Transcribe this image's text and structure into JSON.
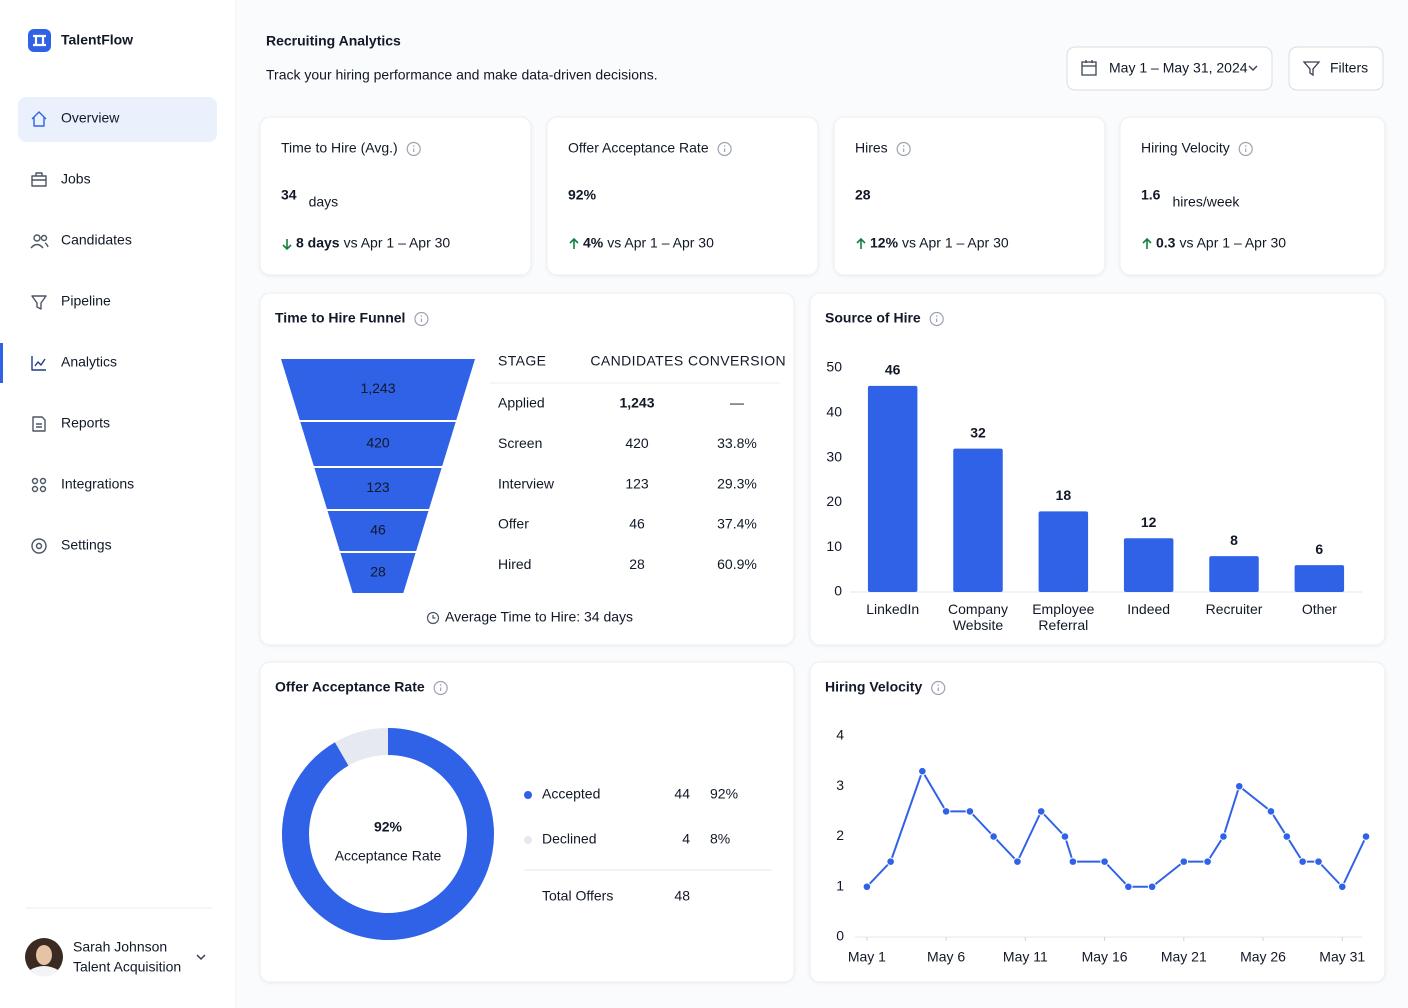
{
  "sidebar": {
    "brand": "TalentFlow",
    "nav": [
      "Overview",
      "Jobs",
      "Candidates",
      "Pipeline",
      "Analytics",
      "Reports",
      "Integrations",
      "Settings"
    ],
    "user": {
      "name": "Sarah Johnson",
      "role": "Talent Acquisition"
    }
  },
  "header": {
    "title": "Recruiting Analytics",
    "subtitle": "Track your hiring performance and make data-driven decisions.",
    "date_range": "May 1 – May 31, 2024",
    "filters": "Filters"
  },
  "kpis": [
    {
      "label": "Time to Hire (Avg.)",
      "value": "34",
      "unit": "days",
      "delta": "8 days",
      "comparison": "vs Apr 1 – Apr 30",
      "trend": "down"
    },
    {
      "label": "Offer Acceptance Rate",
      "value": "92%",
      "delta": "4%",
      "comparison": "vs Apr 1 – Apr 30",
      "trend": "up"
    },
    {
      "label": "Hires",
      "value": "28",
      "delta": "12%",
      "comparison": "vs Apr 1 – Apr 30",
      "trend": "up"
    },
    {
      "label": "Hiring Velocity",
      "value": "1.6",
      "unit": "hires/week",
      "delta": "0.3",
      "comparison": "vs Apr 1 – Apr 30",
      "trend": "up"
    }
  ],
  "chart_data": [
    {
      "type": "funnel",
      "title": "Time to Hire Funnel",
      "categories": [
        "Applied",
        "Screen",
        "Interview",
        "Offer",
        "Hired"
      ],
      "values": [
        1243,
        420,
        123,
        46,
        28
      ],
      "value_labels": [
        "1,243",
        "420",
        "123",
        "46",
        "28"
      ],
      "columns": [
        "STAGE",
        "CANDIDATES",
        "CONVERSION"
      ],
      "conversion_labels": [
        "—",
        "33.8%",
        "29.3%",
        "37.4%",
        "60.9%"
      ],
      "footnote": "Average Time to Hire: 34 days",
      "color": "#2f62e6"
    },
    {
      "type": "bar",
      "title": "Source of Hire",
      "categories": [
        "LinkedIn",
        "Company Website",
        "Employee Referral",
        "Indeed",
        "Recruiter",
        "Other"
      ],
      "values": [
        46,
        32,
        18,
        12,
        8,
        6
      ],
      "color": "#2f62e6",
      "ylim": [
        0,
        50
      ],
      "yticks": [
        0,
        10,
        20,
        30,
        40,
        50
      ],
      "grid": false
    },
    {
      "type": "donut",
      "title": "Offer Acceptance Rate",
      "categories": [
        "Accepted",
        "Declined"
      ],
      "values": [
        44,
        4
      ],
      "share_labels": [
        "92%",
        "8%"
      ],
      "colors": [
        "#2f62e6",
        "#e6e9ef"
      ],
      "center_value": "92%",
      "center_label": "Acceptance Rate",
      "total_label": "Total Offers",
      "total": 48
    },
    {
      "type": "line",
      "title": "Hiring Velocity",
      "color": "#2f62e6",
      "x": [
        1,
        2.5,
        4.5,
        6,
        7.5,
        9,
        10.5,
        12,
        13.5,
        14,
        16,
        17.5,
        19,
        21,
        22.5,
        23.5,
        24.5,
        26.5,
        27.5,
        28.5,
        29.5,
        31,
        32.5
      ],
      "values": [
        1,
        1.5,
        3.3,
        2.5,
        2.5,
        2,
        1.5,
        2.5,
        2,
        1.5,
        1.5,
        1,
        1,
        1.5,
        1.5,
        2,
        3,
        2.5,
        2,
        1.5,
        1.5,
        1,
        2
      ],
      "xlim": [
        0.25,
        32.75
      ],
      "xticks": [
        {
          "value": 1,
          "label": "May 1"
        },
        {
          "value": 6,
          "label": "May 6"
        },
        {
          "value": 11,
          "label": "May 11"
        },
        {
          "value": 16,
          "label": "May 16"
        },
        {
          "value": 21,
          "label": "May 21"
        },
        {
          "value": 26,
          "label": "May 26"
        },
        {
          "value": 31,
          "label": "May 31"
        }
      ],
      "ylim": [
        0,
        4
      ],
      "yticks": [
        0,
        1,
        2,
        3,
        4
      ],
      "grid": false
    }
  ]
}
